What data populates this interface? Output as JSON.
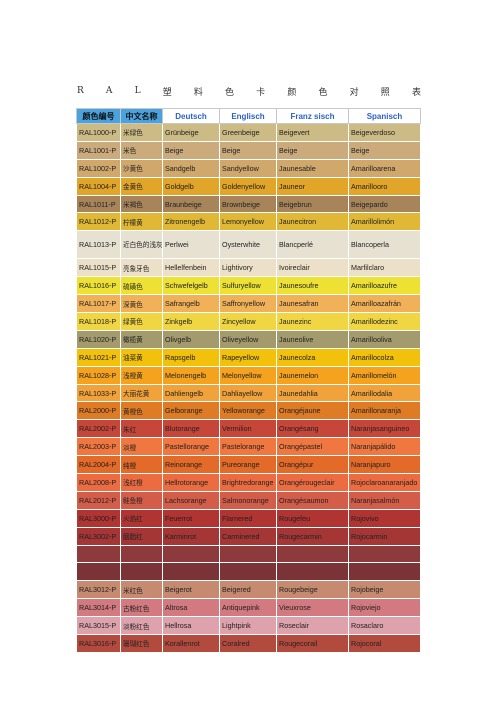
{
  "title_chars": [
    "R",
    "A",
    "L",
    "塑",
    "料",
    "色",
    "卡",
    "颜",
    "色",
    "对",
    "照",
    "表"
  ],
  "headers": [
    "颜色编号",
    "中文名称",
    "Deutsch",
    "Englisch",
    "Franz sisch",
    "Spanisch"
  ],
  "rows": [
    {
      "code": "RAL1000-P",
      "cn": "米绿色",
      "de": "Grünbeige",
      "en": "Greenbeige",
      "fr": "Beigevert",
      "es": "Beigeverdoso",
      "color": "#cdbb86"
    },
    {
      "code": "RAL1001-P",
      "cn": "米色",
      "de": "Beige",
      "en": "Beige",
      "fr": "Beige",
      "es": "Beige",
      "color": "#cbab7c"
    },
    {
      "code": "RAL1002-P",
      "cn": "沙黄色",
      "de": "Sandgelb",
      "en": "Sandyellow",
      "fr": "Jaunesable",
      "es": "Amarilloarena",
      "color": "#d0a86c"
    },
    {
      "code": "RAL1004-P",
      "cn": "金黄色",
      "de": "Goldgelb",
      "en": "Goldenyellow",
      "fr": "Jauneor",
      "es": "Amarillooro",
      "color": "#e1a529"
    },
    {
      "code": "RAL1011-P",
      "cn": "米褐色",
      "de": "Braunbeige",
      "en": "Brownbeige",
      "fr": "Beigebrun",
      "es": "Beigepardo",
      "color": "#a8845b"
    },
    {
      "code": "RAL1012-P",
      "cn": "柠檬黄",
      "de": "Zitronengelb",
      "en": "Lemonyellow",
      "fr": "Jaunecitron",
      "es": "Amarillolimón",
      "color": "#e0b836"
    },
    {
      "code": "RAL1013-P",
      "cn": "近白色的浅灰",
      "de": "Perlwei",
      "en": "Oysterwhite",
      "fr": "Blancperlé",
      "es": "Blancoperla",
      "color": "#e7e1d2"
    },
    {
      "code": "RAL1015-P",
      "cn": "亮象牙色",
      "de": "Hellelfenbein",
      "en": "Lightivory",
      "fr": "Ivoireclair",
      "es": "Marfilclaro",
      "color": "#ece1c8"
    },
    {
      "code": "RAL1016-P",
      "cn": "硫磺色",
      "de": "Schwefelgelb",
      "en": "Sulfuryellow",
      "fr": "Jaunesoufre",
      "es": "Amarilloazufre",
      "color": "#ede234"
    },
    {
      "code": "RAL1017-P",
      "cn": "深黄色",
      "de": "Safrangelb",
      "en": "Saffronyellow",
      "fr": "Jaunesafran",
      "es": "Amarilloazafrán",
      "color": "#f1b158"
    },
    {
      "code": "RAL1018-P",
      "cn": "绿黄色",
      "de": "Zinkgelb",
      "en": "Zincyellow",
      "fr": "Jaunezinc",
      "es": "Amarillodezinc",
      "color": "#f1d643"
    },
    {
      "code": "RAL1020-P",
      "cn": "橄榄黄",
      "de": "Olivgelb",
      "en": "Oliveyellow",
      "fr": "Jauneolive",
      "es": "Amarillooliva",
      "color": "#a39b6d"
    },
    {
      "code": "RAL1021-P",
      "cn": "油菜黄",
      "de": "Rapsgelb",
      "en": "Rapeyellow",
      "fr": "Jaunecolza",
      "es": "Amarillocolza",
      "color": "#f2c10b"
    },
    {
      "code": "RAL1028-P",
      "cn": "浅橙黄",
      "de": "Melonengelb",
      "en": "Melonyellow",
      "fr": "Jaunemelon",
      "es": "Amarillomelón",
      "color": "#f5a21e"
    },
    {
      "code": "RAL1033-P",
      "cn": "大丽花黄",
      "de": "Dahliengelb",
      "en": "Dahliayellow",
      "fr": "Jaunedahlia",
      "es": "Amarillodalia",
      "color": "#f1a23a"
    },
    {
      "code": "RAL2000-P",
      "cn": "黄橙色",
      "de": "Gelborange",
      "en": "Yelloworange",
      "fr": "Orangéjaune",
      "es": "Amarillonaranja",
      "color": "#df7b25"
    },
    {
      "code": "RAL2002-P",
      "cn": "朱红",
      "de": "Blutorange",
      "en": "Vermilion",
      "fr": "Orangésang",
      "es": "Naranjasanguineo",
      "color": "#c6473a"
    },
    {
      "code": "RAL2003-P",
      "cn": "淡橙",
      "de": "Pastellorange",
      "en": "Pastelorange",
      "fr": "Orangépastel",
      "es": "Naranjapálido",
      "color": "#f0773f"
    },
    {
      "code": "RAL2004-P",
      "cn": "纯橙",
      "de": "Reinorange",
      "en": "Pureorange",
      "fr": "Orangépur",
      "es": "Naranjapuro",
      "color": "#e36a28"
    },
    {
      "code": "RAL2008-P",
      "cn": "浅红橙",
      "de": "Hellrotorange",
      "en": "Brightredorange",
      "fr": "Orangérougeclair",
      "es": "Rojoclaroanaranjado",
      "color": "#ec6b40"
    },
    {
      "code": "RAL2012-P",
      "cn": "鲑鱼橙",
      "de": "Lachsorange",
      "en": "Salmonorange",
      "fr": "Orangésaumon",
      "es": "Naranjasalmón",
      "color": "#d45d49"
    },
    {
      "code": "RAL3000-P",
      "cn": "火焰红",
      "de": "Feuerrot",
      "en": "Flamered",
      "fr": "Rougefeu",
      "es": "Rojovivo",
      "color": "#b03432"
    },
    {
      "code": "RAL3002-P",
      "cn": "胭脂红",
      "de": "Karminrot",
      "en": "Carminered",
      "fr": "Rougecarmin",
      "es": "Rojocarmin",
      "color": "#a43736"
    },
    {
      "code": "",
      "cn": "",
      "de": "",
      "en": "",
      "fr": "",
      "es": "",
      "color": "#8c3a3c"
    },
    {
      "code": "",
      "cn": "",
      "de": "",
      "en": "",
      "fr": "",
      "es": "",
      "color": "#7a3336"
    },
    {
      "code": "RAL3012-P",
      "cn": "米红色",
      "de": "Beigerot",
      "en": "Beigered",
      "fr": "Rougebeige",
      "es": "Rojobeige",
      "color": "#c68a70"
    },
    {
      "code": "RAL3014-P",
      "cn": "古粉红色",
      "de": "Altrosa",
      "en": "Antiquepink",
      "fr": "Vieuxrose",
      "es": "Rojoviejo",
      "color": "#d27a7f"
    },
    {
      "code": "RAL3015-P",
      "cn": "淡粉红色",
      "de": "Hellrosa",
      "en": "Lightpink",
      "fr": "Roseclair",
      "es": "Rosaclaro",
      "color": "#dda2ac"
    },
    {
      "code": "RAL3016-P",
      "cn": "珊瑚红色",
      "de": "Korallenrot",
      "en": "Coralred",
      "fr": "Rougecorail",
      "es": "Rojocoral",
      "color": "#b34a3e"
    }
  ]
}
